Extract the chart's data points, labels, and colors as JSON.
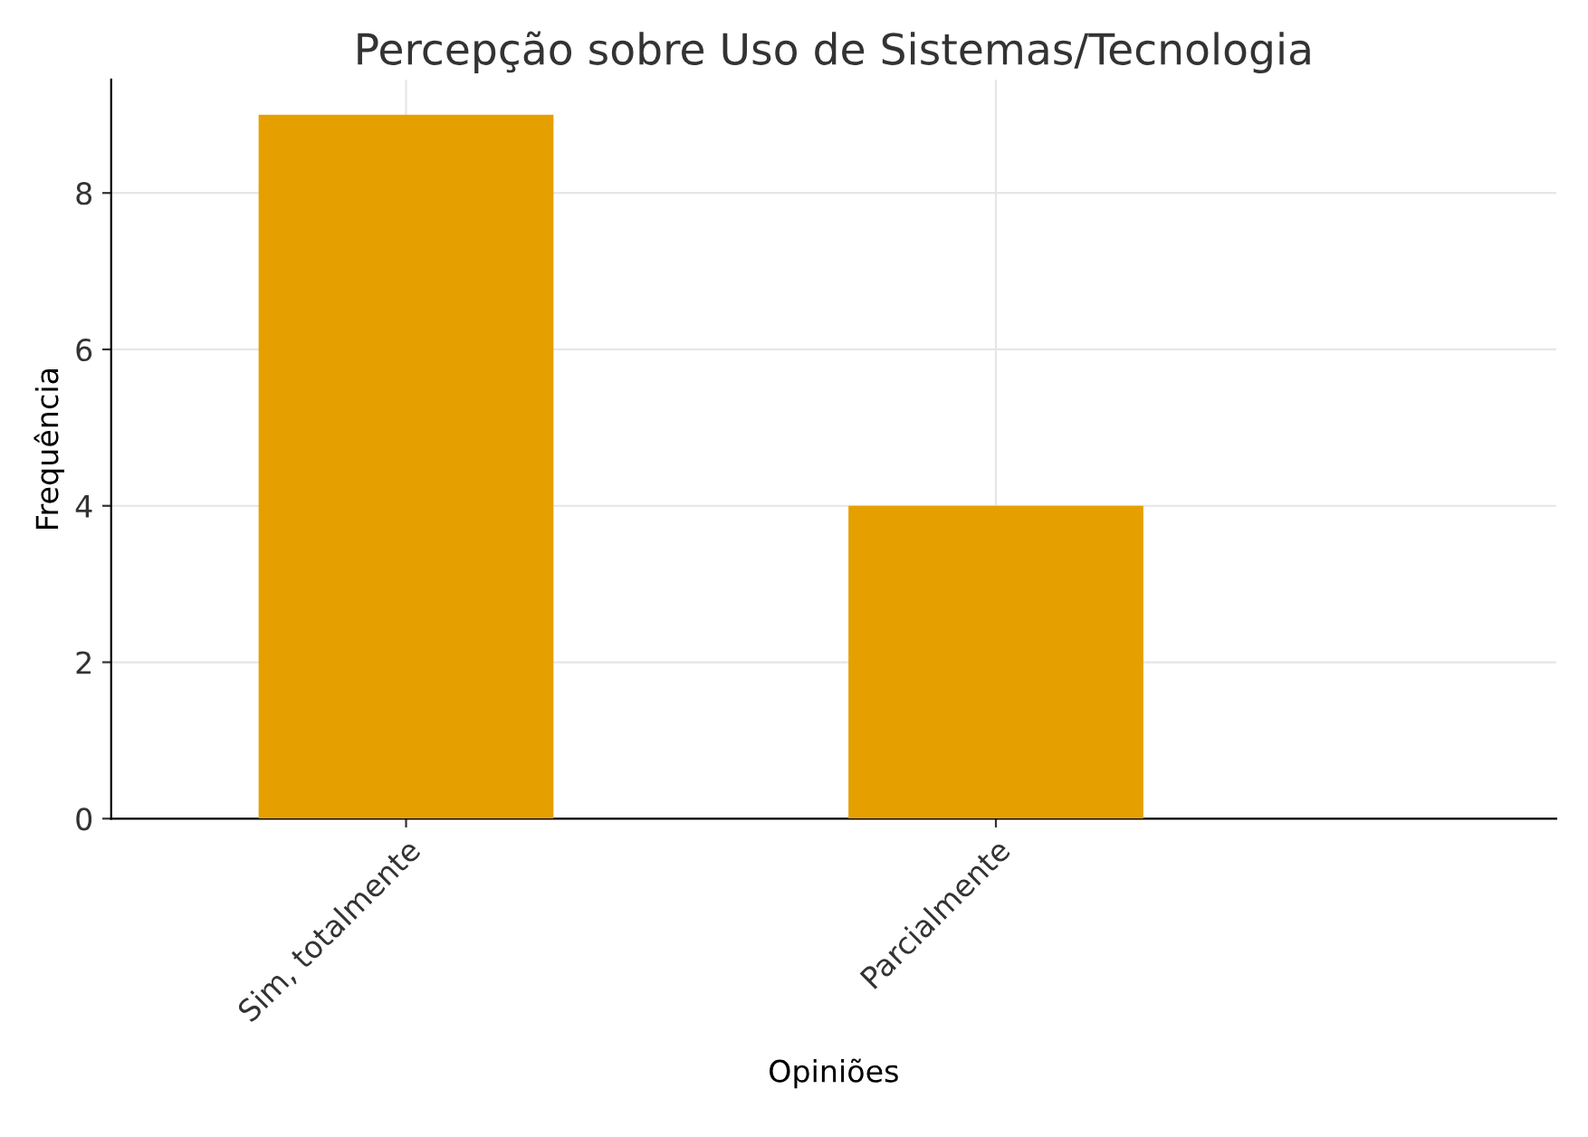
{
  "chart_data": {
    "type": "bar",
    "title": "Percepção sobre Uso de Sistemas/Tecnologia",
    "xlabel": "Opiniões",
    "ylabel": "Frequência",
    "categories": [
      "Sim, totalmente",
      "Parcialmente"
    ],
    "values": [
      9,
      4
    ],
    "color": "#e5a000",
    "ylim": [
      0,
      9.45
    ],
    "yticks": [
      0,
      2,
      4,
      6,
      8
    ],
    "grid": true
  }
}
